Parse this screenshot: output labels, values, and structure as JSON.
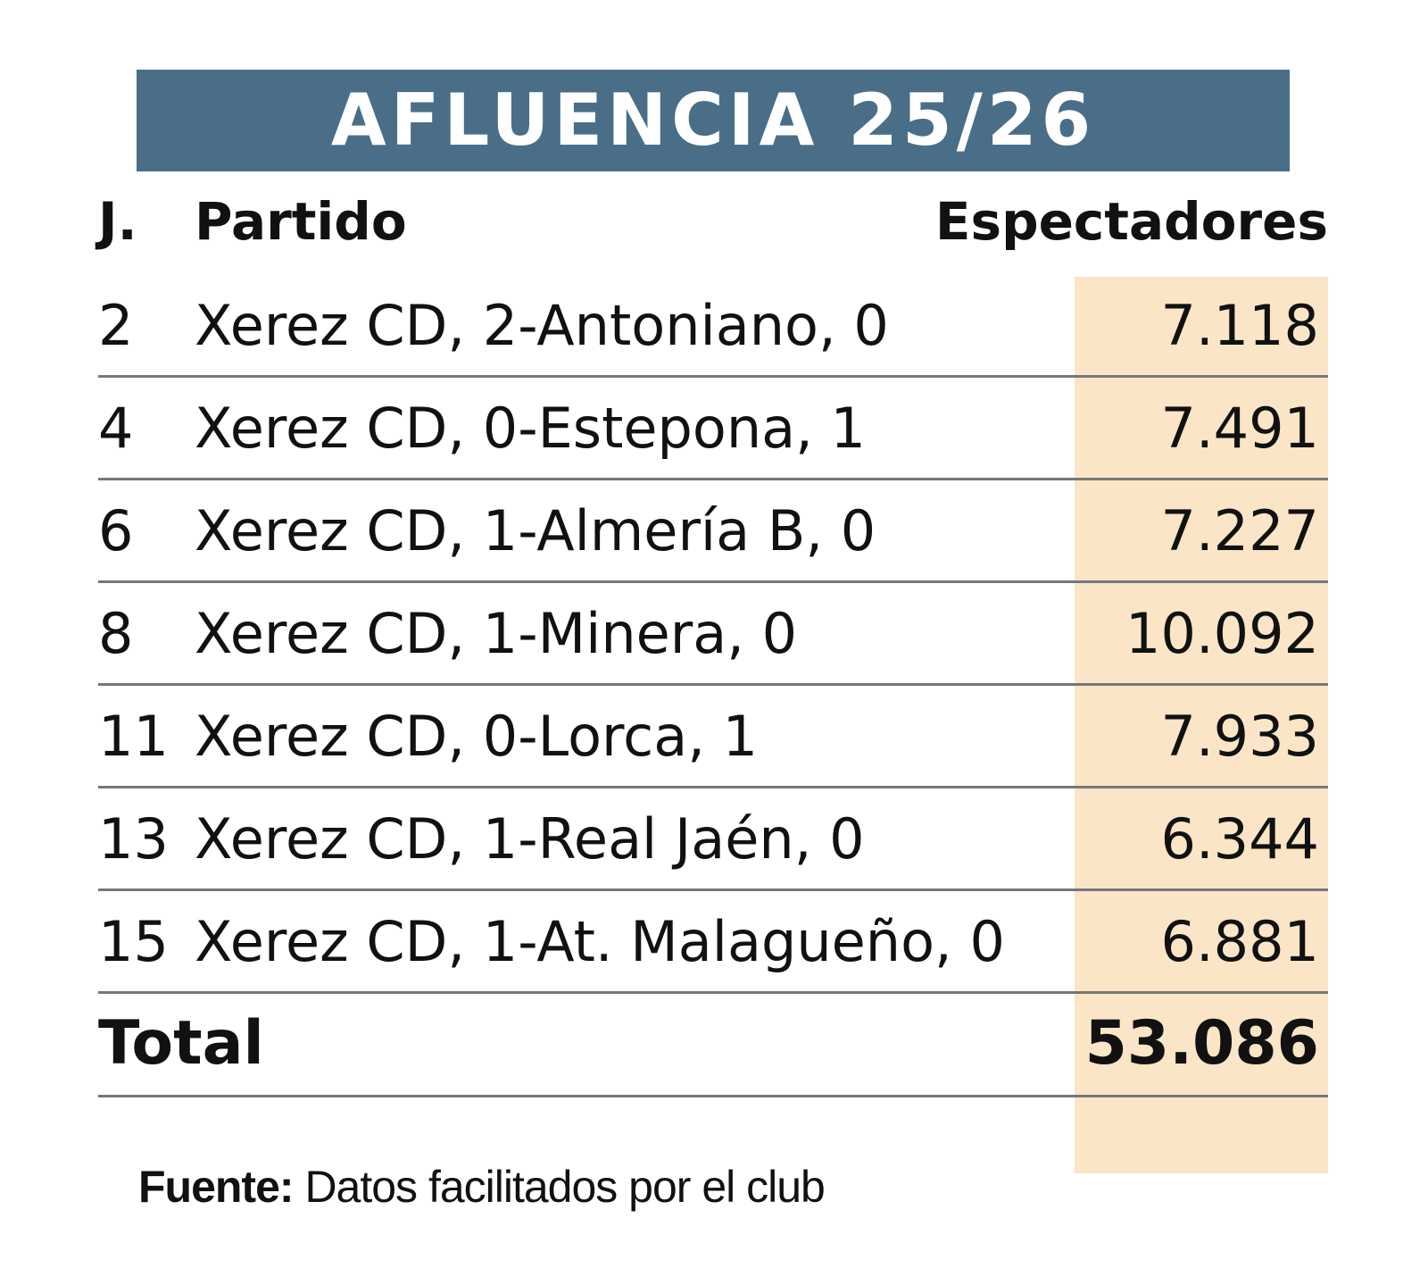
{
  "title": "AFLUENCIA 25/26",
  "columns": {
    "jornada": "J.",
    "partido": "Partido",
    "espectadores": "Espectadores"
  },
  "rows": [
    {
      "j": "2",
      "partido": "Xerez CD, 2-Antoniano, 0",
      "espectadores": "7.118"
    },
    {
      "j": "4",
      "partido": "Xerez CD, 0-Estepona, 1",
      "espectadores": "7.491"
    },
    {
      "j": "6",
      "partido": "Xerez CD, 1-Almería B, 0",
      "espectadores": "7.227"
    },
    {
      "j": "8",
      "partido": "Xerez CD, 1-Minera, 0",
      "espectadores": "10.092"
    },
    {
      "j": "11",
      "partido": "Xerez CD, 0-Lorca, 1",
      "espectadores": "7.933"
    },
    {
      "j": "13",
      "partido": "Xerez CD, 1-Real Jaén, 0",
      "espectadores": "6.344"
    },
    {
      "j": "15",
      "partido": "Xerez CD, 1-At. Malagueño, 0",
      "espectadores": "6.881"
    }
  ],
  "total": {
    "label": "Total",
    "value": "53.086"
  },
  "source": {
    "label": "Fuente:",
    "text": " Datos facilitados por el club"
  },
  "colors": {
    "title_bg": "#4a6e87",
    "highlight": "#fae5c6",
    "rule": "#777777"
  },
  "chart_data": {
    "type": "table",
    "title": "AFLUENCIA 25/26",
    "columns": [
      "J.",
      "Partido",
      "Espectadores"
    ],
    "rows": [
      [
        2,
        "Xerez CD, 2-Antoniano, 0",
        7118
      ],
      [
        4,
        "Xerez CD, 0-Estepona, 1",
        7491
      ],
      [
        6,
        "Xerez CD, 1-Almería B, 0",
        7227
      ],
      [
        8,
        "Xerez CD, 1-Minera, 0",
        10092
      ],
      [
        11,
        "Xerez CD, 0-Lorca, 1",
        7933
      ],
      [
        13,
        "Xerez CD, 1-Real Jaén, 0",
        6344
      ],
      [
        15,
        "Xerez CD, 1-At. Malagueño, 0",
        6881
      ]
    ],
    "total": 53086
  }
}
